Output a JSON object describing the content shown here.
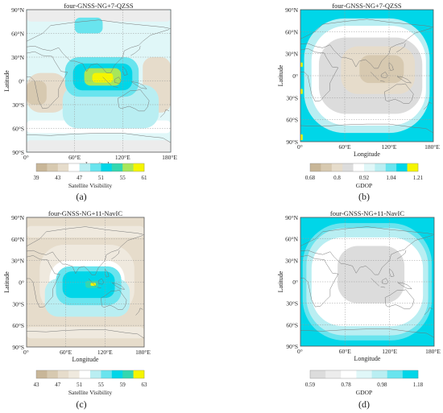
{
  "colors": {
    "tan_dark": "#c8b698",
    "tan": "#d7c9b0",
    "tan_light": "#e6dccb",
    "tan_faint": "#efe9de",
    "gray": "#dcdcdc",
    "gray_light": "#ececec",
    "white": "#ffffff",
    "cyan_faint": "#e0f7f8",
    "cyan_light": "#b9eef2",
    "cyan": "#69e4ee",
    "cyan_strong": "#00d6e8",
    "green": "#33d7b0",
    "green_yellow": "#a8e65a",
    "yellow": "#f5f500",
    "frame": "#555555",
    "grid": "#9a9a9a",
    "coast": "#777777"
  },
  "chart_data": [
    {
      "id": "a",
      "type": "heatmap",
      "title": "four-GNSS-NG+7-QZSS",
      "xlabel": "Longitude",
      "ylabel": "Latitude",
      "xticks": [
        "0°",
        "60°E",
        "120°E",
        "180°E"
      ],
      "yticks": [
        "90°N",
        "60°N",
        "30°N",
        "0°",
        "30°S",
        "60°S",
        "90°S"
      ],
      "xlim": [
        0,
        180
      ],
      "ylim": [
        -90,
        90
      ],
      "grid": true,
      "colorbar_label": "Satellite Visibility",
      "colorbar_ticks": [
        "39",
        "43",
        "47",
        "51",
        "55",
        "61"
      ],
      "colorbar_colors": [
        "tan_dark",
        "tan",
        "tan_light",
        "white",
        "cyan_light",
        "cyan",
        "cyan_strong",
        "green",
        "green_yellow",
        "yellow"
      ],
      "panel_label": "(a)",
      "background": "cyan_faint",
      "regions": [
        {
          "lon": [
            0,
            180
          ],
          "lat": [
            -90,
            -75
          ],
          "color": "gray_light"
        },
        {
          "lon": [
            0,
            180
          ],
          "lat": [
            75,
            90
          ],
          "color": "gray_light"
        },
        {
          "lon": [
            0,
            50
          ],
          "lat": [
            -40,
            10
          ],
          "color": "tan_light"
        },
        {
          "lon": [
            0,
            25
          ],
          "lat": [
            -30,
            0
          ],
          "color": "tan"
        },
        {
          "lon": [
            145,
            180
          ],
          "lat": [
            -40,
            30
          ],
          "color": "tan_light"
        },
        {
          "lon": [
            0,
            180
          ],
          "lat": [
            -66,
            -50
          ],
          "color": "white"
        },
        {
          "lon": [
            45,
            165
          ],
          "lat": [
            -60,
            -5
          ],
          "color": "cyan_light"
        },
        {
          "lon": [
            60,
            95
          ],
          "lat": [
            60,
            80
          ],
          "color": "cyan"
        },
        {
          "lon": [
            48,
            140
          ],
          "lat": [
            -20,
            30
          ],
          "color": "cyan"
        },
        {
          "lon": [
            58,
            132
          ],
          "lat": [
            -12,
            22
          ],
          "color": "cyan_strong"
        },
        {
          "lon": [
            72,
            118
          ],
          "lat": [
            -6,
            16
          ],
          "color": "green_yellow"
        },
        {
          "lon": [
            82,
            108
          ],
          "lat": [
            -2,
            10
          ],
          "color": "yellow"
        }
      ]
    },
    {
      "id": "b",
      "type": "heatmap",
      "title": "four-GNSS-NG+7-QZSS",
      "xlabel": "Longitude",
      "ylabel": "Latitude",
      "xticks": [
        "0°",
        "60°E",
        "120°E",
        "180°E"
      ],
      "yticks": [
        "90°N",
        "60°N",
        "30°N",
        "0°",
        "30°S",
        "60°S",
        "90°S"
      ],
      "xlim": [
        0,
        180
      ],
      "ylim": [
        -90,
        90
      ],
      "grid": true,
      "colorbar_label": "GDOP",
      "colorbar_ticks": [
        "0.68",
        "0.8",
        "0.92",
        "1.04",
        "1.21"
      ],
      "colorbar_colors": [
        "tan_dark",
        "tan",
        "tan_light",
        "gray",
        "white",
        "cyan_faint",
        "cyan_light",
        "cyan",
        "cyan_strong",
        "yellow"
      ],
      "panel_label": "(b)",
      "background": "cyan_strong",
      "regions": [
        {
          "lon": [
            5,
            175
          ],
          "lat": [
            -78,
            78
          ],
          "color": "cyan_light"
        },
        {
          "lon": [
            15,
            170
          ],
          "lat": [
            -68,
            68
          ],
          "color": "white"
        },
        {
          "lon": [
            25,
            165
          ],
          "lat": [
            -52,
            52
          ],
          "color": "gray"
        },
        {
          "lon": [
            55,
            155
          ],
          "lat": [
            -25,
            40
          ],
          "color": "tan_light"
        },
        {
          "lon": [
            80,
            140
          ],
          "lat": [
            -10,
            28
          ],
          "color": "tan"
        },
        {
          "lon": [
            0,
            3
          ],
          "lat": [
            12,
            18
          ],
          "color": "yellow"
        },
        {
          "lon": [
            0,
            3
          ],
          "lat": [
            -25,
            -18
          ],
          "color": "yellow"
        },
        {
          "lon": [
            0,
            3
          ],
          "lat": [
            -88,
            -80
          ],
          "color": "yellow"
        }
      ]
    },
    {
      "id": "c",
      "type": "heatmap",
      "title": "four-GNSS-NG+11-NavIC",
      "xlabel": "Longitude",
      "ylabel": "Latitude",
      "xticks": [
        "0°",
        "60°E",
        "120°E",
        "180°E"
      ],
      "yticks": [
        "90°N",
        "60°N",
        "30°N",
        "0°",
        "30°S",
        "60°S",
        "90°S"
      ],
      "xlim": [
        0,
        180
      ],
      "ylim": [
        -90,
        90
      ],
      "grid": true,
      "colorbar_label": "Satellite Visibility",
      "colorbar_ticks": [
        "43",
        "47",
        "51",
        "55",
        "59",
        "63"
      ],
      "colorbar_colors": [
        "tan_dark",
        "tan",
        "tan_light",
        "tan_faint",
        "white",
        "cyan_light",
        "cyan",
        "cyan_strong",
        "green",
        "yellow"
      ],
      "panel_label": "(c)",
      "background": "tan_light",
      "regions": [
        {
          "lon": [
            0,
            180
          ],
          "lat": [
            62,
            78
          ],
          "color": "tan_faint"
        },
        {
          "lon": [
            0,
            180
          ],
          "lat": [
            -78,
            -62
          ],
          "color": "tan_faint"
        },
        {
          "lon": [
            20,
            165
          ],
          "lat": [
            -45,
            52
          ],
          "color": "tan_faint"
        },
        {
          "lon": [
            35,
            150
          ],
          "lat": [
            -42,
            30
          ],
          "color": "white"
        },
        {
          "lon": [
            28,
            158
          ],
          "lat": [
            -48,
            5
          ],
          "color": "cyan_light"
        },
        {
          "lon": [
            45,
            145
          ],
          "lat": [
            -32,
            22
          ],
          "color": "cyan"
        },
        {
          "lon": [
            55,
            135
          ],
          "lat": [
            -22,
            15
          ],
          "color": "cyan_strong"
        },
        {
          "lon": [
            90,
            110
          ],
          "lat": [
            -8,
            2
          ],
          "color": "green"
        },
        {
          "lon": [
            98,
            106
          ],
          "lat": [
            -5,
            -1
          ],
          "color": "yellow"
        }
      ]
    },
    {
      "id": "d",
      "type": "heatmap",
      "title": "four-GNSS-NG+11-NavIC",
      "xlabel": "Longitude",
      "ylabel": "Latitude",
      "xticks": [
        "0°",
        "60°E",
        "120°E",
        "180°E"
      ],
      "yticks": [
        "90°N",
        "60°N",
        "30°N",
        "0°",
        "30°S",
        "60°S",
        "90°S"
      ],
      "xlim": [
        0,
        180
      ],
      "ylim": [
        -90,
        90
      ],
      "grid": true,
      "colorbar_label": "GDOP",
      "colorbar_ticks": [
        "0.59",
        "0.78",
        "0.98",
        "1.18"
      ],
      "colorbar_colors": [
        "gray",
        "gray_light",
        "white",
        "cyan_faint",
        "cyan_light",
        "cyan",
        "cyan_strong"
      ],
      "panel_label": "(d)",
      "background": "cyan_strong",
      "regions": [
        {
          "lon": [
            3,
            177
          ],
          "lat": [
            -82,
            82
          ],
          "color": "cyan"
        },
        {
          "lon": [
            8,
            172
          ],
          "lat": [
            -75,
            75
          ],
          "color": "cyan_light"
        },
        {
          "lon": [
            15,
            165
          ],
          "lat": [
            -62,
            62
          ],
          "color": "white"
        },
        {
          "lon": [
            50,
            140
          ],
          "lat": [
            -30,
            50
          ],
          "color": "gray"
        }
      ]
    }
  ]
}
